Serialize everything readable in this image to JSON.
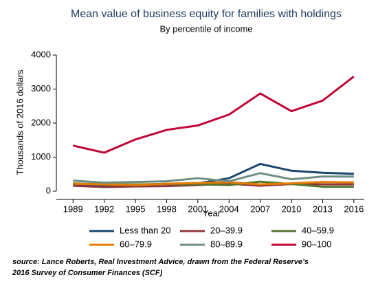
{
  "chart_data": {
    "type": "line",
    "title": "Mean value of business equity for families with holdings",
    "subtitle": "By percentile of income",
    "x_label": "Year",
    "y_label": "Thousands of 2016 dollars",
    "x": [
      1989,
      1992,
      1995,
      1998,
      2001,
      2004,
      2007,
      2010,
      2013,
      2016
    ],
    "series": [
      {
        "name": "Less than 20",
        "color": "#1a476f",
        "values": [
          200,
          180,
          190,
          220,
          230,
          380,
          800,
          600,
          540,
          510
        ]
      },
      {
        "name": "20–39.9",
        "color": "#90353b",
        "values": [
          160,
          120,
          140,
          150,
          180,
          220,
          160,
          210,
          200,
          200
        ]
      },
      {
        "name": "40–59.9",
        "color": "#55752f",
        "values": [
          230,
          200,
          200,
          210,
          200,
          180,
          280,
          210,
          130,
          130
        ]
      },
      {
        "name": "60–79.9",
        "color": "#e37e00",
        "values": [
          220,
          200,
          180,
          220,
          240,
          260,
          200,
          230,
          270,
          260
        ]
      },
      {
        "name": "80–89.9",
        "color": "#6e8e84",
        "values": [
          310,
          250,
          270,
          290,
          380,
          290,
          530,
          350,
          430,
          430
        ]
      },
      {
        "name": "90–100",
        "color": "#c10534",
        "values": [
          1340,
          1130,
          1520,
          1800,
          1930,
          2250,
          2870,
          2350,
          2660,
          3370
        ]
      }
    ],
    "xlim": [
      1987.4,
      2017
    ],
    "xticks": [
      1989,
      1992,
      1995,
      1998,
      2001,
      2004,
      2007,
      2010,
      2013,
      2016
    ],
    "ylim": [
      0,
      4000
    ],
    "yticks": [
      0,
      1000,
      2000,
      3000,
      4000
    ],
    "grid": false,
    "note": [
      "source: Lance Roberts, Real Investment Advice, drawn from the Federal Reserve’s",
      "2016 Survey of Consumer Finances (SCF)"
    ]
  }
}
